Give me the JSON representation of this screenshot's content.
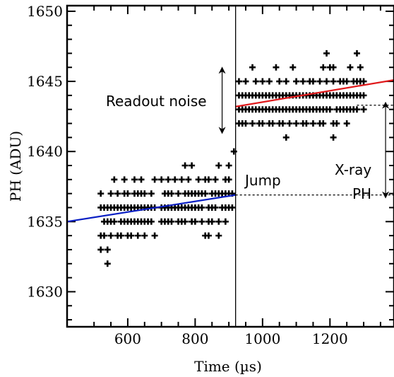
{
  "chart_data": {
    "type": "scatter",
    "xlabel": "Time (µs)",
    "ylabel": "PH (ADU)",
    "xlim": [
      420,
      1390
    ],
    "ylim": [
      1627.5,
      1650.4
    ],
    "x_ticks": [
      600,
      800,
      1000,
      1200
    ],
    "y_ticks": [
      1630,
      1635,
      1640,
      1645,
      1650
    ],
    "grid": false,
    "jump_time": 920,
    "points": [
      {
        "t": 520,
        "ph": 1637
      },
      {
        "t": 520,
        "ph": 1636
      },
      {
        "t": 520,
        "ph": 1634
      },
      {
        "t": 520,
        "ph": 1633
      },
      {
        "t": 530,
        "ph": 1635
      },
      {
        "t": 530,
        "ph": 1636
      },
      {
        "t": 530,
        "ph": 1634
      },
      {
        "t": 540,
        "ph": 1636
      },
      {
        "t": 540,
        "ph": 1632
      },
      {
        "t": 540,
        "ph": 1633
      },
      {
        "t": 540,
        "ph": 1635
      },
      {
        "t": 550,
        "ph": 1637
      },
      {
        "t": 550,
        "ph": 1636
      },
      {
        "t": 550,
        "ph": 1635
      },
      {
        "t": 550,
        "ph": 1634
      },
      {
        "t": 560,
        "ph": 1638
      },
      {
        "t": 560,
        "ph": 1636
      },
      {
        "t": 560,
        "ph": 1635
      },
      {
        "t": 570,
        "ph": 1637
      },
      {
        "t": 570,
        "ph": 1636
      },
      {
        "t": 570,
        "ph": 1634
      },
      {
        "t": 580,
        "ph": 1636
      },
      {
        "t": 580,
        "ph": 1635
      },
      {
        "t": 580,
        "ph": 1634
      },
      {
        "t": 590,
        "ph": 1637
      },
      {
        "t": 590,
        "ph": 1636
      },
      {
        "t": 590,
        "ph": 1635
      },
      {
        "t": 590,
        "ph": 1638
      },
      {
        "t": 600,
        "ph": 1637
      },
      {
        "t": 600,
        "ph": 1636
      },
      {
        "t": 600,
        "ph": 1635
      },
      {
        "t": 600,
        "ph": 1634
      },
      {
        "t": 610,
        "ph": 1636
      },
      {
        "t": 610,
        "ph": 1635
      },
      {
        "t": 610,
        "ph": 1634
      },
      {
        "t": 620,
        "ph": 1637
      },
      {
        "t": 620,
        "ph": 1636
      },
      {
        "t": 620,
        "ph": 1635
      },
      {
        "t": 620,
        "ph": 1638
      },
      {
        "t": 630,
        "ph": 1637
      },
      {
        "t": 630,
        "ph": 1636
      },
      {
        "t": 630,
        "ph": 1635
      },
      {
        "t": 630,
        "ph": 1634
      },
      {
        "t": 640,
        "ph": 1637
      },
      {
        "t": 640,
        "ph": 1636
      },
      {
        "t": 640,
        "ph": 1635
      },
      {
        "t": 640,
        "ph": 1638
      },
      {
        "t": 650,
        "ph": 1637
      },
      {
        "t": 650,
        "ph": 1636
      },
      {
        "t": 650,
        "ph": 1635
      },
      {
        "t": 650,
        "ph": 1634
      },
      {
        "t": 660,
        "ph": 1636
      },
      {
        "t": 660,
        "ph": 1635
      },
      {
        "t": 670,
        "ph": 1637
      },
      {
        "t": 670,
        "ph": 1636
      },
      {
        "t": 670,
        "ph": 1635
      },
      {
        "t": 680,
        "ph": 1638
      },
      {
        "t": 680,
        "ph": 1636
      },
      {
        "t": 680,
        "ph": 1634
      },
      {
        "t": 700,
        "ph": 1638
      },
      {
        "t": 700,
        "ph": 1636
      },
      {
        "t": 700,
        "ph": 1635
      },
      {
        "t": 710,
        "ph": 1637
      },
      {
        "t": 710,
        "ph": 1636
      },
      {
        "t": 710,
        "ph": 1635
      },
      {
        "t": 720,
        "ph": 1638
      },
      {
        "t": 720,
        "ph": 1637
      },
      {
        "t": 720,
        "ph": 1636
      },
      {
        "t": 720,
        "ph": 1635
      },
      {
        "t": 730,
        "ph": 1637
      },
      {
        "t": 730,
        "ph": 1636
      },
      {
        "t": 730,
        "ph": 1635
      },
      {
        "t": 740,
        "ph": 1638
      },
      {
        "t": 740,
        "ph": 1636
      },
      {
        "t": 750,
        "ph": 1637
      },
      {
        "t": 750,
        "ph": 1636
      },
      {
        "t": 750,
        "ph": 1635
      },
      {
        "t": 760,
        "ph": 1638
      },
      {
        "t": 760,
        "ph": 1636
      },
      {
        "t": 760,
        "ph": 1635
      },
      {
        "t": 770,
        "ph": 1639
      },
      {
        "t": 770,
        "ph": 1637
      },
      {
        "t": 770,
        "ph": 1636
      },
      {
        "t": 770,
        "ph": 1635
      },
      {
        "t": 780,
        "ph": 1638
      },
      {
        "t": 780,
        "ph": 1637
      },
      {
        "t": 780,
        "ph": 1636
      },
      {
        "t": 790,
        "ph": 1639
      },
      {
        "t": 790,
        "ph": 1637
      },
      {
        "t": 790,
        "ph": 1636
      },
      {
        "t": 790,
        "ph": 1635
      },
      {
        "t": 800,
        "ph": 1637
      },
      {
        "t": 800,
        "ph": 1636
      },
      {
        "t": 800,
        "ph": 1635
      },
      {
        "t": 810,
        "ph": 1638
      },
      {
        "t": 810,
        "ph": 1637
      },
      {
        "t": 810,
        "ph": 1636
      },
      {
        "t": 820,
        "ph": 1637
      },
      {
        "t": 820,
        "ph": 1636
      },
      {
        "t": 820,
        "ph": 1635
      },
      {
        "t": 830,
        "ph": 1638
      },
      {
        "t": 830,
        "ph": 1637
      },
      {
        "t": 830,
        "ph": 1634
      },
      {
        "t": 840,
        "ph": 1638
      },
      {
        "t": 840,
        "ph": 1636
      },
      {
        "t": 840,
        "ph": 1635
      },
      {
        "t": 840,
        "ph": 1634
      },
      {
        "t": 850,
        "ph": 1637
      },
      {
        "t": 850,
        "ph": 1636
      },
      {
        "t": 850,
        "ph": 1635
      },
      {
        "t": 860,
        "ph": 1638
      },
      {
        "t": 860,
        "ph": 1637
      },
      {
        "t": 860,
        "ph": 1636
      },
      {
        "t": 870,
        "ph": 1639
      },
      {
        "t": 870,
        "ph": 1637
      },
      {
        "t": 870,
        "ph": 1635
      },
      {
        "t": 870,
        "ph": 1634
      },
      {
        "t": 880,
        "ph": 1637
      },
      {
        "t": 880,
        "ph": 1636
      },
      {
        "t": 890,
        "ph": 1638
      },
      {
        "t": 890,
        "ph": 1637
      },
      {
        "t": 890,
        "ph": 1636
      },
      {
        "t": 890,
        "ph": 1635
      },
      {
        "t": 900,
        "ph": 1639
      },
      {
        "t": 900,
        "ph": 1637
      },
      {
        "t": 900,
        "ph": 1636
      },
      {
        "t": 900,
        "ph": 1638
      },
      {
        "t": 910,
        "ph": 1637
      },
      {
        "t": 910,
        "ph": 1636
      },
      {
        "t": 915,
        "ph": 1640
      },
      {
        "t": 930,
        "ph": 1645
      },
      {
        "t": 930,
        "ph": 1644
      },
      {
        "t": 930,
        "ph": 1643
      },
      {
        "t": 930,
        "ph": 1642
      },
      {
        "t": 940,
        "ph": 1644
      },
      {
        "t": 940,
        "ph": 1643
      },
      {
        "t": 940,
        "ph": 1642
      },
      {
        "t": 950,
        "ph": 1645
      },
      {
        "t": 950,
        "ph": 1644
      },
      {
        "t": 950,
        "ph": 1643
      },
      {
        "t": 950,
        "ph": 1642
      },
      {
        "t": 960,
        "ph": 1644
      },
      {
        "t": 960,
        "ph": 1643
      },
      {
        "t": 970,
        "ph": 1646
      },
      {
        "t": 970,
        "ph": 1644
      },
      {
        "t": 970,
        "ph": 1643
      },
      {
        "t": 970,
        "ph": 1642
      },
      {
        "t": 980,
        "ph": 1645
      },
      {
        "t": 980,
        "ph": 1644
      },
      {
        "t": 980,
        "ph": 1643
      },
      {
        "t": 990,
        "ph": 1644
      },
      {
        "t": 990,
        "ph": 1643
      },
      {
        "t": 990,
        "ph": 1642
      },
      {
        "t": 1000,
        "ph": 1645
      },
      {
        "t": 1000,
        "ph": 1644
      },
      {
        "t": 1000,
        "ph": 1643
      },
      {
        "t": 1000,
        "ph": 1642
      },
      {
        "t": 1010,
        "ph": 1644
      },
      {
        "t": 1010,
        "ph": 1643
      },
      {
        "t": 1020,
        "ph": 1645
      },
      {
        "t": 1020,
        "ph": 1644
      },
      {
        "t": 1020,
        "ph": 1643
      },
      {
        "t": 1020,
        "ph": 1642
      },
      {
        "t": 1030,
        "ph": 1644
      },
      {
        "t": 1030,
        "ph": 1643
      },
      {
        "t": 1030,
        "ph": 1642
      },
      {
        "t": 1040,
        "ph": 1646
      },
      {
        "t": 1040,
        "ph": 1644
      },
      {
        "t": 1040,
        "ph": 1643
      },
      {
        "t": 1050,
        "ph": 1645
      },
      {
        "t": 1050,
        "ph": 1644
      },
      {
        "t": 1050,
        "ph": 1643
      },
      {
        "t": 1050,
        "ph": 1642
      },
      {
        "t": 1060,
        "ph": 1644
      },
      {
        "t": 1060,
        "ph": 1643
      },
      {
        "t": 1060,
        "ph": 1642
      },
      {
        "t": 1070,
        "ph": 1645
      },
      {
        "t": 1070,
        "ph": 1644
      },
      {
        "t": 1070,
        "ph": 1643
      },
      {
        "t": 1070,
        "ph": 1641
      },
      {
        "t": 1080,
        "ph": 1644
      },
      {
        "t": 1080,
        "ph": 1643
      },
      {
        "t": 1080,
        "ph": 1642
      },
      {
        "t": 1090,
        "ph": 1646
      },
      {
        "t": 1090,
        "ph": 1644
      },
      {
        "t": 1090,
        "ph": 1643
      },
      {
        "t": 1100,
        "ph": 1645
      },
      {
        "t": 1100,
        "ph": 1644
      },
      {
        "t": 1100,
        "ph": 1643
      },
      {
        "t": 1100,
        "ph": 1642
      },
      {
        "t": 1110,
        "ph": 1644
      },
      {
        "t": 1110,
        "ph": 1643
      },
      {
        "t": 1120,
        "ph": 1645
      },
      {
        "t": 1120,
        "ph": 1644
      },
      {
        "t": 1120,
        "ph": 1643
      },
      {
        "t": 1120,
        "ph": 1642
      },
      {
        "t": 1130,
        "ph": 1644
      },
      {
        "t": 1130,
        "ph": 1643
      },
      {
        "t": 1130,
        "ph": 1642
      },
      {
        "t": 1140,
        "ph": 1645
      },
      {
        "t": 1140,
        "ph": 1644
      },
      {
        "t": 1140,
        "ph": 1643
      },
      {
        "t": 1150,
        "ph": 1645
      },
      {
        "t": 1150,
        "ph": 1644
      },
      {
        "t": 1150,
        "ph": 1643
      },
      {
        "t": 1150,
        "ph": 1642
      },
      {
        "t": 1160,
        "ph": 1644
      },
      {
        "t": 1160,
        "ph": 1643
      },
      {
        "t": 1170,
        "ph": 1645
      },
      {
        "t": 1170,
        "ph": 1644
      },
      {
        "t": 1170,
        "ph": 1643
      },
      {
        "t": 1170,
        "ph": 1642
      },
      {
        "t": 1180,
        "ph": 1646
      },
      {
        "t": 1180,
        "ph": 1644
      },
      {
        "t": 1180,
        "ph": 1643
      },
      {
        "t": 1180,
        "ph": 1642
      },
      {
        "t": 1190,
        "ph": 1647
      },
      {
        "t": 1190,
        "ph": 1645
      },
      {
        "t": 1190,
        "ph": 1644
      },
      {
        "t": 1190,
        "ph": 1643
      },
      {
        "t": 1200,
        "ph": 1646
      },
      {
        "t": 1200,
        "ph": 1644
      },
      {
        "t": 1200,
        "ph": 1643
      },
      {
        "t": 1210,
        "ph": 1646
      },
      {
        "t": 1210,
        "ph": 1645
      },
      {
        "t": 1210,
        "ph": 1644
      },
      {
        "t": 1210,
        "ph": 1642
      },
      {
        "t": 1210,
        "ph": 1641
      },
      {
        "t": 1220,
        "ph": 1644
      },
      {
        "t": 1220,
        "ph": 1643
      },
      {
        "t": 1220,
        "ph": 1642
      },
      {
        "t": 1230,
        "ph": 1645
      },
      {
        "t": 1230,
        "ph": 1644
      },
      {
        "t": 1230,
        "ph": 1643
      },
      {
        "t": 1240,
        "ph": 1645
      },
      {
        "t": 1240,
        "ph": 1644
      },
      {
        "t": 1240,
        "ph": 1643
      },
      {
        "t": 1250,
        "ph": 1645
      },
      {
        "t": 1250,
        "ph": 1644
      },
      {
        "t": 1250,
        "ph": 1643
      },
      {
        "t": 1250,
        "ph": 1642
      },
      {
        "t": 1260,
        "ph": 1646
      },
      {
        "t": 1260,
        "ph": 1644
      },
      {
        "t": 1260,
        "ph": 1643
      },
      {
        "t": 1270,
        "ph": 1645
      },
      {
        "t": 1270,
        "ph": 1644
      },
      {
        "t": 1270,
        "ph": 1643
      },
      {
        "t": 1280,
        "ph": 1647
      },
      {
        "t": 1280,
        "ph": 1645
      },
      {
        "t": 1280,
        "ph": 1644
      },
      {
        "t": 1280,
        "ph": 1643
      },
      {
        "t": 1290,
        "ph": 1646
      },
      {
        "t": 1290,
        "ph": 1645
      },
      {
        "t": 1290,
        "ph": 1644
      },
      {
        "t": 1300,
        "ph": 1645
      },
      {
        "t": 1300,
        "ph": 1644
      },
      {
        "t": 1300,
        "ph": 1643
      }
    ],
    "fit_before": {
      "color": "#0a1fc4",
      "t": [
        420,
        920
      ],
      "ph": [
        1635.0,
        1636.9
      ]
    },
    "fit_after": {
      "color": "#e0191b",
      "t": [
        920,
        1390
      ],
      "ph": [
        1643.2,
        1645.1
      ]
    },
    "reference_lines": [
      {
        "ph": 1636.9,
        "t": [
          920,
          1390
        ]
      },
      {
        "ph": 1643.3,
        "t": [
          1280,
          1390
        ]
      }
    ],
    "annotations": {
      "readout_noise": "Readout noise",
      "jump": "Jump",
      "xray_line1": "X-ray",
      "xray_line2": "PH"
    },
    "arrows": {
      "readout_noise": {
        "t": 880,
        "ph": [
          1641.5,
          1645.8
        ]
      },
      "xray_ph": {
        "t": 1365,
        "ph": [
          1636.9,
          1643.3
        ]
      }
    },
    "marker_color": "#000000"
  }
}
